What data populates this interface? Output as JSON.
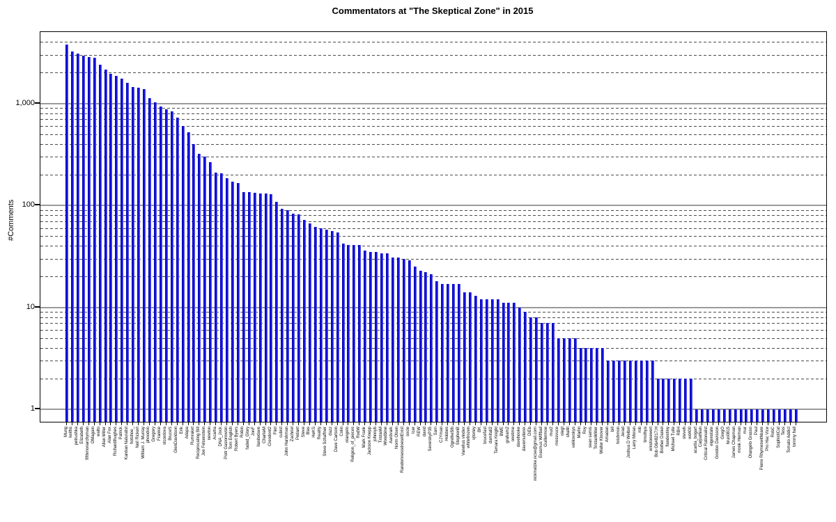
{
  "title": "Commentators at \"The Skeptical Zone\" in 2015",
  "chart_data": {
    "type": "bar",
    "title": "Commentators at \"The Skeptical Zone\" in 2015",
    "xlabel": "",
    "ylabel": "#Comments",
    "yscale": "log",
    "ylim": [
      0.75,
      5000
    ],
    "grid": "horizontal, solid gray at decades, dashed at 2-9 per decade",
    "legend": "none",
    "bar_color": "#1515e0",
    "yticks": [
      {
        "value": 1,
        "label": "1"
      },
      {
        "value": 10,
        "label": "10"
      },
      {
        "value": 100,
        "label": "100"
      },
      {
        "value": 1000,
        "label": "1,000"
      }
    ],
    "categories": [
      "Mung",
      "keiths",
      "petrushka",
      "Elizabeth",
      "fifthmonarchyman",
      "OMagain",
      "walto",
      "Allan Miller",
      "Alan Fox",
      "Richardthughes",
      "Patrick",
      "Kantian Naturalist",
      "hotshoe_",
      "Neil Rickert",
      "William J. Murray",
      "phoodoo",
      "Gregory",
      "Frankie",
      "stcordova",
      "BruceS",
      "GlenDavidson",
      "Erik",
      "Adapa",
      "Rumraket",
      "Reciprocating Bill",
      "Joe Felsenstein",
      "newton",
      "Acartia",
      "DNA_Jock",
      "Piotr Gasiorowski",
      "Tom English",
      "Robert Byers",
      "Robin",
      "faded_Glory",
      "JonF",
      "llanitedave",
      "CharlieM",
      "Creodont2",
      "Flint",
      "cubist",
      "John Harshman",
      "Zachriel",
      "Pedant",
      "Steve",
      "Blas",
      "HeKS",
      "Reality",
      "Steve Schaffner",
      "dazz",
      "Dave Carlson",
      "Colin",
      "otangelo",
      "Religion_of_pieces",
      "RodW",
      "Mark Frank",
      "Jackson Knepp",
      "johnnyb",
      "TristanM",
      "Woodbine",
      "Aardvark",
      "Norm Olsen",
      "RandomnessdoesntExist",
      "socle",
      "Icer",
      "REW",
      "david",
      "SeverskyP35",
      "Sam",
      "CJYman",
      "Hobbes",
      "Ogrethe5th",
      "StephenB",
      "Vanellus vindex",
      "whitefrozen",
      "vjtorley",
      "BK",
      "brucefast",
      "damitall2",
      "Tamara Knight",
      "BWE",
      "graham2",
      "onetime",
      "davehooke",
      "davemullenix",
      "DiEb",
      "nickmatzke.ncse@gmail.com",
      "Erasmus Wiffball",
      "Guillermoe",
      "mur2",
      "mossvuce",
      "olegt",
      "shallit",
      "velikovskys",
      "Marlin",
      "Roy",
      "sean samis",
      "TristanMiller",
      "Walter Kloover",
      "Amadan",
      "bill",
      "hrichmon",
      "Jerad",
      "Joshua D Welbel",
      "Larry Moran",
      "rob",
      "timothya",
      "winstonewert",
      "Bob O&#8217;H",
      "Brother Daniel",
      "flandestiny",
      "Michael Tuite",
      "RBH",
      "steveh",
      "wd400",
      "acartia_bogart",
      "Carpathian",
      "Critical Rationalist",
      "eigenstate",
      "Gordon Davisson",
      "GregO",
      "hrun0815",
      "James Chapman",
      "monk Herman",
      "mur",
      "Otangelo Grasso",
      "Paul",
      "Pierre Rhymeswithbare",
      "Pro Hac Vice",
      "RobC",
      "SophistiCat",
      "Tess",
      "Tomato Addict",
      "tommy hall"
    ],
    "values": [
      3800,
      3250,
      3100,
      2950,
      2850,
      2800,
      2400,
      2150,
      1950,
      1850,
      1750,
      1600,
      1450,
      1420,
      1390,
      1130,
      1030,
      930,
      880,
      840,
      720,
      600,
      520,
      400,
      320,
      300,
      265,
      210,
      205,
      185,
      172,
      166,
      135,
      134,
      133,
      131,
      130,
      129,
      108,
      92,
      90,
      83,
      82,
      72,
      66,
      61,
      60,
      58,
      56,
      54,
      42,
      41,
      41,
      41,
      36,
      35,
      35,
      34,
      34,
      31,
      31,
      30,
      29,
      25,
      23,
      22,
      21,
      18,
      17,
      17,
      17,
      17,
      14,
      14,
      13,
      12,
      12,
      12,
      12,
      11,
      11,
      11,
      10,
      9,
      8,
      8,
      7,
      7,
      7,
      5,
      5,
      5,
      5,
      4,
      4,
      4,
      4,
      4,
      3,
      3,
      3,
      3,
      3,
      3,
      3,
      3,
      3,
      2,
      2,
      2,
      2,
      2,
      2,
      2,
      1,
      1,
      1,
      1,
      1,
      1,
      1,
      1,
      1,
      1,
      1,
      1,
      1,
      1,
      1,
      1,
      1,
      1,
      1
    ]
  }
}
